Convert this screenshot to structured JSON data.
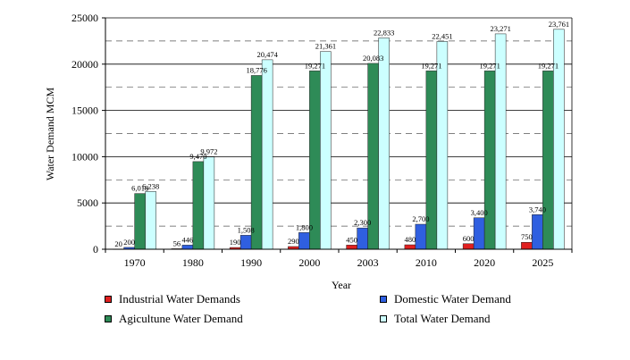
{
  "chart_data": {
    "type": "bar",
    "title": "",
    "xlabel": "Year",
    "ylabel": "Water Demand MCM",
    "ylim": [
      0,
      25000
    ],
    "yticks": [
      "0",
      "5000",
      "10000",
      "15000",
      "20000",
      "25000"
    ],
    "categories": [
      "1970",
      "1980",
      "1990",
      "2000",
      "2003",
      "2010",
      "2020",
      "2025"
    ],
    "series": [
      {
        "name": "Industrial Water Demands",
        "color": "#e02020",
        "values": [
          20,
          56,
          190,
          290,
          450,
          480,
          600,
          750
        ],
        "labels": [
          "20",
          "56",
          "190",
          "290",
          "450",
          "480",
          "600",
          "750"
        ]
      },
      {
        "name": "Domestic Water Demand",
        "color": "#2f5fe0",
        "values": [
          200,
          446,
          1508,
          1800,
          2300,
          2700,
          3400,
          3740
        ],
        "labels": [
          "200",
          "446",
          "1,508",
          "1,800",
          "2,300",
          "2,700",
          "3,400",
          "3,740"
        ]
      },
      {
        "name": "Agicultune Water Demand",
        "color": "#2e8b57",
        "values": [
          6018,
          9470,
          18776,
          19271,
          20083,
          19271,
          19271,
          19271
        ],
        "labels": [
          "6,018",
          "9,470",
          "18,776",
          "19,271",
          "20,083",
          "19,271",
          "19,271",
          "19,271"
        ]
      },
      {
        "name": "Total Water Demand",
        "color": "#ccffff",
        "values": [
          6238,
          9972,
          20474,
          21361,
          22833,
          22451,
          23271,
          23761
        ],
        "labels": [
          "6,238",
          "9,972",
          "20,474",
          "21,361",
          "22,833",
          "22,451",
          "23,271",
          "23,761"
        ]
      }
    ],
    "legend": {
      "position": "bottom",
      "items": [
        "Industrial Water Demands",
        "Domestic Water Demand",
        "Agicultune Water Demand",
        "Total Water Demand"
      ]
    }
  }
}
